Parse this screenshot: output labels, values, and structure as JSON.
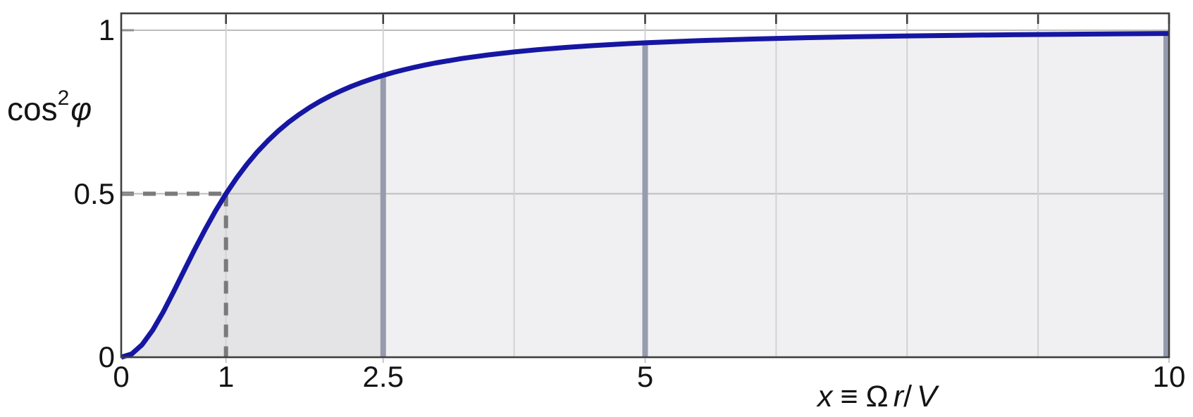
{
  "page": {
    "background": "#ffffff"
  },
  "labels": {
    "y_title": {
      "text": "cos",
      "sup": "2",
      "symbol": "φ"
    },
    "x_title": {
      "var": "x",
      "rel": "≡",
      "omega": "Ω",
      "radius": "r",
      "slash": "/",
      "velocity": "V"
    }
  },
  "chart_data": {
    "type": "area",
    "title": "",
    "xlabel": "x ≡ Ωr/V",
    "ylabel": "cos²φ",
    "x_range": [
      0,
      10
    ],
    "y_range": [
      0,
      1.05
    ],
    "grid": {
      "x": [
        1,
        2.5,
        3.75,
        5,
        6.25,
        7.5,
        8.75,
        10
      ],
      "y": [
        0.5,
        1
      ]
    },
    "x_ticks": [
      {
        "v": 0,
        "label": "0"
      },
      {
        "v": 1,
        "label": "1"
      },
      {
        "v": 2.5,
        "label": "2.5"
      },
      {
        "v": 5,
        "label": "5"
      },
      {
        "v": 10,
        "label": "10"
      }
    ],
    "y_ticks": [
      {
        "v": 0,
        "label": "0"
      },
      {
        "v": 0.5,
        "label": "0.5"
      },
      {
        "v": 1,
        "label": "1"
      }
    ],
    "points": [
      [
        0,
        0
      ],
      [
        0.1,
        0.0099
      ],
      [
        0.2,
        0.0385
      ],
      [
        0.3,
        0.0826
      ],
      [
        0.4,
        0.1379
      ],
      [
        0.5,
        0.2
      ],
      [
        0.6,
        0.2647
      ],
      [
        0.7,
        0.3289
      ],
      [
        0.8,
        0.3902
      ],
      [
        0.9,
        0.4475
      ],
      [
        1,
        0.5
      ],
      [
        1.1,
        0.5475
      ],
      [
        1.2,
        0.5902
      ],
      [
        1.3,
        0.6283
      ],
      [
        1.4,
        0.6622
      ],
      [
        1.5,
        0.6923
      ],
      [
        1.6,
        0.7191
      ],
      [
        1.7,
        0.7429
      ],
      [
        1.8,
        0.7642
      ],
      [
        1.9,
        0.7831
      ],
      [
        2,
        0.8
      ],
      [
        2.1,
        0.8151
      ],
      [
        2.2,
        0.8288
      ],
      [
        2.3,
        0.841
      ],
      [
        2.4,
        0.8521
      ],
      [
        2.5,
        0.8621
      ],
      [
        2.6,
        0.8712
      ],
      [
        2.7,
        0.8794
      ],
      [
        2.8,
        0.8869
      ],
      [
        2.9,
        0.8937
      ],
      [
        3,
        0.9
      ],
      [
        3.25,
        0.9135
      ],
      [
        3.5,
        0.9245
      ],
      [
        3.75,
        0.9336
      ],
      [
        4,
        0.9412
      ],
      [
        4.25,
        0.9475
      ],
      [
        4.5,
        0.9529
      ],
      [
        4.75,
        0.9576
      ],
      [
        5,
        0.9615
      ],
      [
        5.5,
        0.968
      ],
      [
        6,
        0.973
      ],
      [
        6.5,
        0.9769
      ],
      [
        7,
        0.98
      ],
      [
        7.5,
        0.9825
      ],
      [
        8,
        0.9846
      ],
      [
        8.5,
        0.9863
      ],
      [
        9,
        0.9878
      ],
      [
        9.5,
        0.989
      ],
      [
        10,
        0.9901
      ]
    ],
    "fill_split_x": 2.5,
    "marker_lines": [
      {
        "x": 2.5,
        "y": 0.8621
      },
      {
        "x": 5,
        "y": 0.9615
      },
      {
        "x": 10,
        "y": 0.9901
      }
    ],
    "dashed_guides": [
      {
        "from": [
          0,
          0.5
        ],
        "to": [
          1,
          0.5
        ]
      },
      {
        "from": [
          1,
          0.5
        ],
        "to": [
          1,
          0
        ]
      }
    ],
    "colors": {
      "curve": "#1616a3",
      "marker_line": "#979bae",
      "fill_inner": "#e4e4e7",
      "fill_outer": "#f0f0f2",
      "grid_vertical": "#d2d2d5",
      "grid_horizontal": "#bcbcbc",
      "dashed": "#7a7a7a",
      "frame": "#3f3f3f",
      "minor_bottom_tick": "#c6c6c6",
      "left_tick": "#8f8f8f"
    },
    "legend": null
  }
}
